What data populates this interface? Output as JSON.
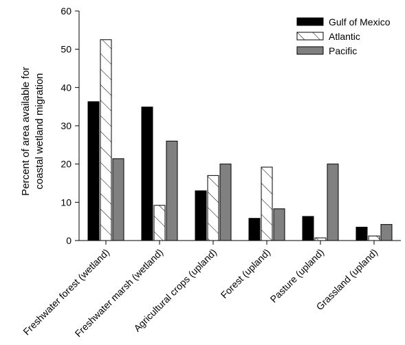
{
  "chart_data": {
    "type": "bar",
    "title": "",
    "xlabel": "",
    "ylabel_lines": [
      "Percent of area available for",
      "coastal wetland migration"
    ],
    "ylim": [
      0,
      60
    ],
    "yticks": [
      0,
      10,
      20,
      30,
      40,
      50,
      60
    ],
    "categories": [
      "Freshwater forest (wetland)",
      "Freshwater marsh (wetland)",
      "Agricultural crops (upland)",
      "Forest (upland)",
      "Pasture (upland)",
      "Grassland (upland)"
    ],
    "series": [
      {
        "name": "Gulf of Mexico",
        "fill": "#000000",
        "pattern": "solid",
        "values": [
          36.3,
          34.9,
          13.0,
          5.8,
          6.3,
          3.5
        ]
      },
      {
        "name": "Atlantic",
        "fill": "#ffffff",
        "pattern": "hatch",
        "values": [
          52.5,
          9.2,
          17.0,
          19.2,
          0.7,
          1.2
        ]
      },
      {
        "name": "Pacific",
        "fill": "#808080",
        "pattern": "solid",
        "values": [
          21.4,
          26.0,
          20.0,
          8.3,
          20.0,
          4.2
        ]
      }
    ],
    "legend_position": "top-right",
    "grid": false
  }
}
